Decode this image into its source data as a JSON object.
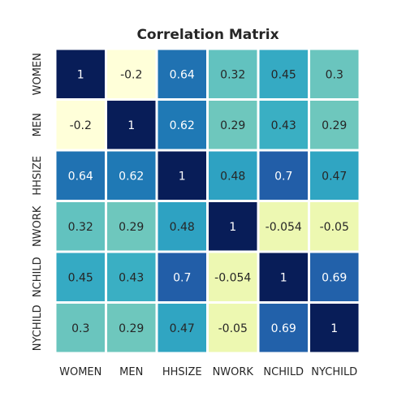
{
  "chart_data": {
    "type": "heatmap",
    "title": "Correlation Matrix",
    "x_labels": [
      "WOMEN",
      "MEN",
      "HHSIZE",
      "NWORK",
      "NCHILD",
      "NYCHILD"
    ],
    "y_labels": [
      "WOMEN",
      "MEN",
      "HHSIZE",
      "NWORK",
      "NCHILD",
      "NYCHILD"
    ],
    "values": [
      [
        1,
        -0.2,
        0.64,
        0.32,
        0.45,
        0.3
      ],
      [
        -0.2,
        1,
        0.62,
        0.29,
        0.43,
        0.29
      ],
      [
        0.64,
        0.62,
        1,
        0.48,
        0.7,
        0.47
      ],
      [
        0.32,
        0.29,
        0.48,
        1,
        -0.054,
        -0.05
      ],
      [
        0.45,
        0.43,
        0.7,
        -0.054,
        1,
        0.69
      ],
      [
        0.3,
        0.29,
        0.47,
        -0.05,
        0.69,
        1
      ]
    ],
    "value_labels": [
      [
        "1",
        "-0.2",
        "0.64",
        "0.32",
        "0.45",
        "0.3"
      ],
      [
        "-0.2",
        "1",
        "0.62",
        "0.29",
        "0.43",
        "0.29"
      ],
      [
        "0.64",
        "0.62",
        "1",
        "0.48",
        "0.7",
        "0.47"
      ],
      [
        "0.32",
        "0.29",
        "0.48",
        "1",
        "-0.054",
        "-0.05"
      ],
      [
        "0.45",
        "0.43",
        "0.7",
        "-0.054",
        "1",
        "0.69"
      ],
      [
        "0.3",
        "0.29",
        "0.47",
        "-0.05",
        "0.69",
        "1"
      ]
    ],
    "colormap": "YlGnBu",
    "value_range": [
      -0.2,
      1
    ],
    "annotations": true,
    "colorbar": false,
    "grid": false
  }
}
